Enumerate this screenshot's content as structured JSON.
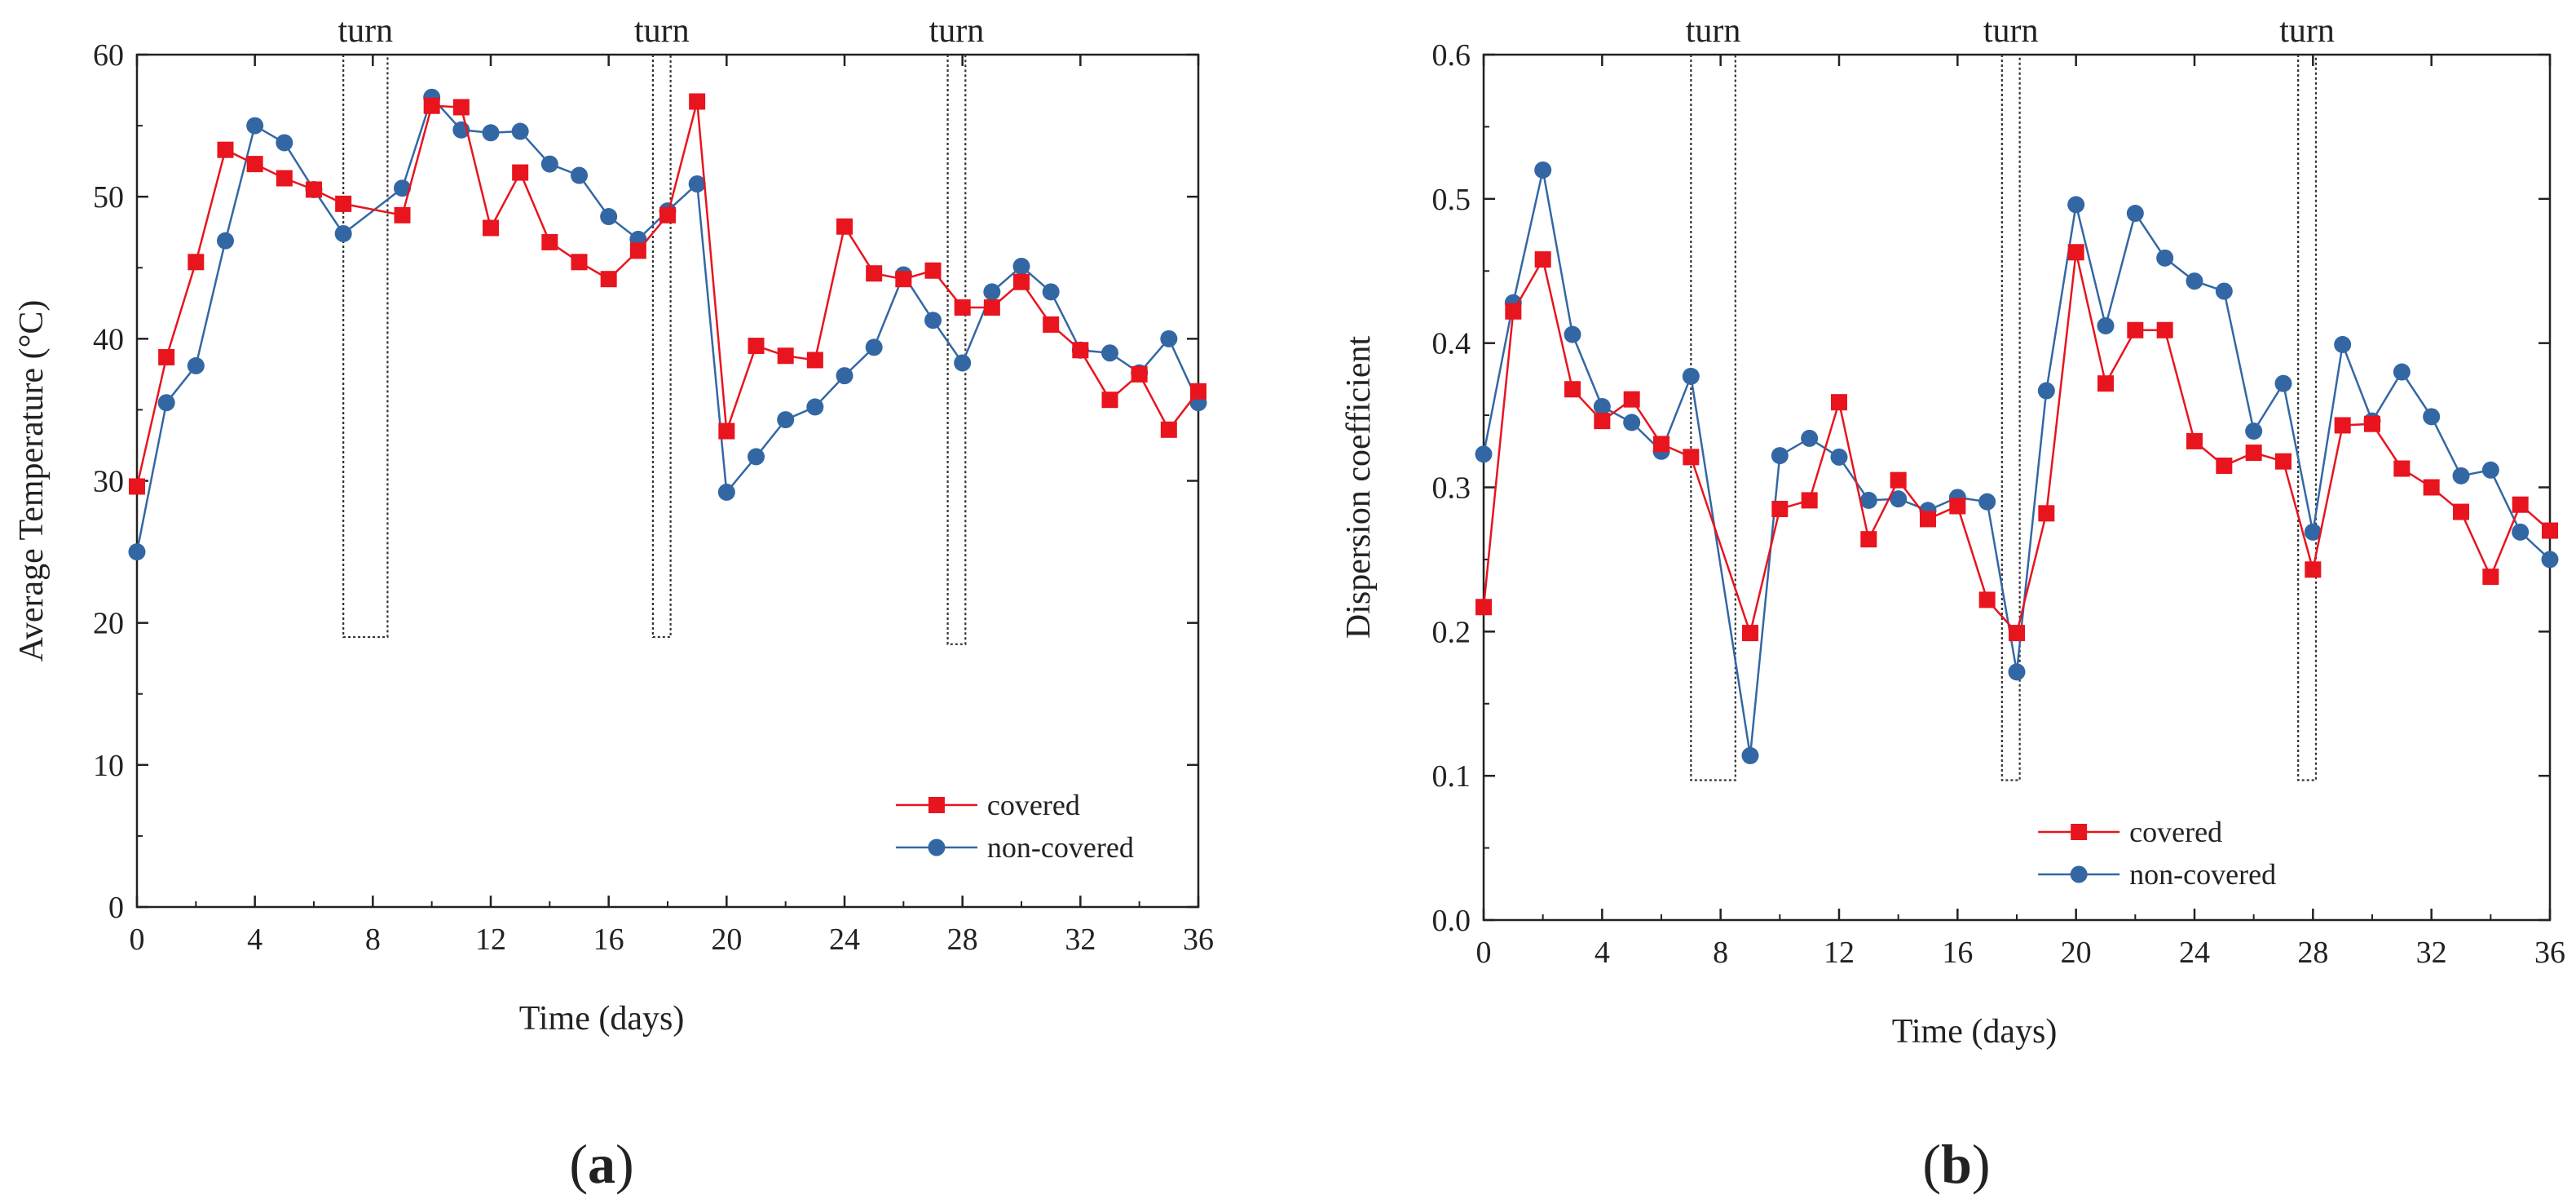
{
  "chart_data": [
    {
      "type": "line",
      "panel_label_open": "(",
      "panel_label_letter": "a",
      "panel_label_close": ")",
      "xlabel": "Time (days)",
      "ylabel": "Average Temperature (°C)",
      "xlim": [
        0,
        36
      ],
      "ylim": [
        0,
        60
      ],
      "xticks": [
        0,
        4,
        8,
        12,
        16,
        20,
        24,
        28,
        32,
        36
      ],
      "yticks": [
        0,
        10,
        20,
        30,
        40,
        50,
        60
      ],
      "legend_position": "lower-right",
      "turn_label": "turn",
      "turns": [
        {
          "x0": 7.0,
          "x1": 8.5,
          "y_bottom": 19
        },
        {
          "x0": 17.5,
          "x1": 18.1,
          "y_bottom": 19
        },
        {
          "x0": 27.5,
          "x1": 28.1,
          "y_bottom": 18.5
        }
      ],
      "series": [
        {
          "name": "covered",
          "color": "#e8141e",
          "marker": "square",
          "x": [
            0,
            1,
            2,
            3,
            4,
            5,
            6,
            7,
            9,
            10,
            11,
            12,
            13,
            14,
            15,
            16,
            17,
            18,
            19,
            20,
            21,
            22,
            23,
            24,
            25,
            26,
            27,
            28,
            29,
            30,
            31,
            32,
            33,
            34,
            35,
            36
          ],
          "y": [
            29.6,
            38.7,
            45.4,
            53.3,
            52.3,
            51.3,
            50.5,
            49.5,
            48.7,
            56.4,
            56.3,
            47.8,
            51.7,
            46.8,
            45.4,
            44.2,
            46.2,
            48.7,
            56.7,
            33.5,
            39.5,
            38.8,
            38.5,
            47.9,
            44.6,
            44.2,
            44.8,
            42.2,
            42.2,
            44.0,
            41.0,
            39.2,
            35.7,
            37.5,
            33.6,
            36.3
          ]
        },
        {
          "name": "non-covered",
          "color": "#3367a4",
          "marker": "circle",
          "x": [
            0,
            1,
            2,
            3,
            4,
            5,
            6,
            7,
            9,
            10,
            11,
            12,
            13,
            14,
            15,
            16,
            17,
            18,
            19,
            20,
            21,
            22,
            23,
            24,
            25,
            26,
            27,
            28,
            29,
            30,
            31,
            32,
            33,
            34,
            35,
            36
          ],
          "y": [
            25.0,
            35.5,
            38.1,
            46.9,
            55.0,
            53.8,
            50.5,
            47.4,
            50.6,
            57.0,
            54.7,
            54.5,
            54.6,
            52.3,
            51.5,
            48.6,
            47.0,
            49.0,
            50.9,
            29.2,
            31.7,
            34.3,
            35.2,
            37.4,
            39.4,
            44.5,
            41.3,
            38.3,
            43.3,
            45.1,
            43.3,
            39.2,
            39.0,
            37.6,
            40.0,
            35.5
          ]
        }
      ]
    },
    {
      "type": "line",
      "panel_label_open": "(",
      "panel_label_letter": "b",
      "panel_label_close": ")",
      "xlabel": "Time (days)",
      "ylabel": "Dispersion coefficient",
      "xlim": [
        0,
        36
      ],
      "ylim": [
        0.0,
        0.6
      ],
      "xticks": [
        0,
        4,
        8,
        12,
        16,
        20,
        24,
        28,
        32,
        36
      ],
      "yticks": [
        "0.0",
        "0.1",
        "0.2",
        "0.3",
        "0.4",
        "0.5",
        "0.6"
      ],
      "legend_position": "lower-right",
      "turn_label": "turn",
      "turns": [
        {
          "x0": 7.0,
          "x1": 8.5,
          "y_bottom": 0.097
        },
        {
          "x0": 17.5,
          "x1": 18.1,
          "y_bottom": 0.097
        },
        {
          "x0": 27.5,
          "x1": 28.1,
          "y_bottom": 0.097
        }
      ],
      "series": [
        {
          "name": "covered",
          "color": "#e8141e",
          "marker": "square",
          "x": [
            0,
            1,
            2,
            3,
            4,
            5,
            6,
            7,
            9,
            10,
            11,
            12,
            13,
            14,
            15,
            16,
            17,
            18,
            19,
            20,
            21,
            22,
            23,
            24,
            25,
            26,
            27,
            28,
            29,
            30,
            31,
            32,
            33,
            34,
            35,
            36
          ],
          "y": [
            0.217,
            0.422,
            0.458,
            0.368,
            0.346,
            0.361,
            0.33,
            0.321,
            0.199,
            0.285,
            0.291,
            0.359,
            0.264,
            0.305,
            0.278,
            0.287,
            0.222,
            0.199,
            0.282,
            0.463,
            0.372,
            0.409,
            0.409,
            0.332,
            0.315,
            0.324,
            0.318,
            0.243,
            0.343,
            0.344,
            0.313,
            0.3,
            0.283,
            0.238,
            0.288,
            0.27
          ]
        },
        {
          "name": "non-covered",
          "color": "#3367a4",
          "marker": "circle",
          "x": [
            0,
            1,
            2,
            3,
            4,
            5,
            6,
            7,
            9,
            10,
            11,
            12,
            13,
            14,
            15,
            16,
            17,
            18,
            19,
            20,
            21,
            22,
            23,
            24,
            25,
            26,
            27,
            28,
            29,
            30,
            31,
            32,
            33,
            34,
            35,
            36
          ],
          "y": [
            0.323,
            0.428,
            0.52,
            0.406,
            0.356,
            0.345,
            0.325,
            0.377,
            0.114,
            0.322,
            0.334,
            0.321,
            0.291,
            0.292,
            0.284,
            0.293,
            0.29,
            0.172,
            0.367,
            0.496,
            0.412,
            0.49,
            0.459,
            0.443,
            0.436,
            0.339,
            0.372,
            0.269,
            0.399,
            0.346,
            0.38,
            0.349,
            0.308,
            0.312,
            0.269,
            0.25
          ]
        }
      ]
    }
  ]
}
